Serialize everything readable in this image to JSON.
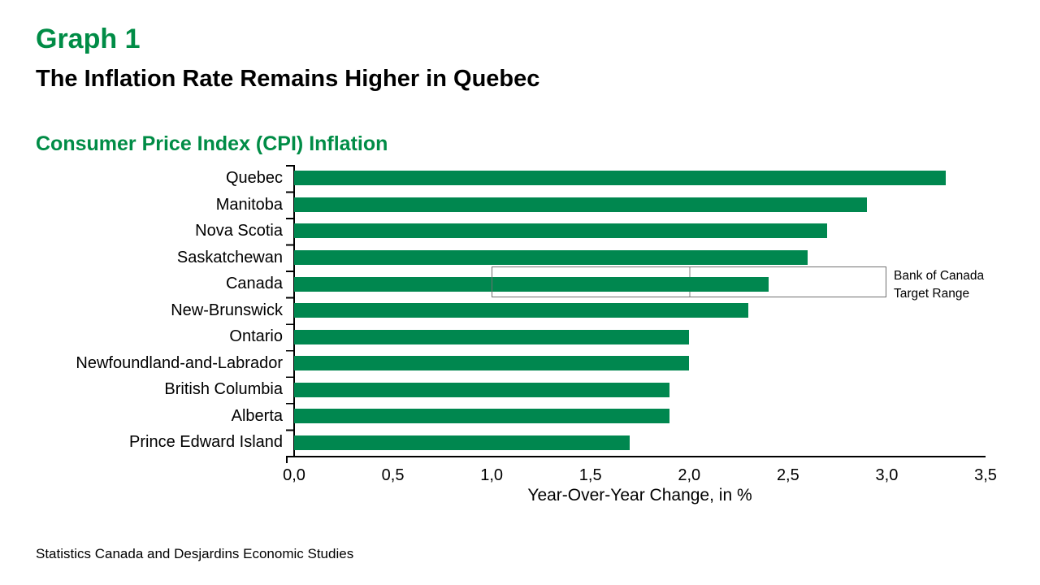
{
  "header": {
    "graph_label": "Graph 1",
    "title": "The Inflation Rate Remains Higher in Quebec",
    "subtitle": "Consumer Price Index (CPI) Inflation"
  },
  "chart_data": {
    "type": "bar",
    "orientation": "horizontal",
    "title": "Consumer Price Index (CPI) Inflation",
    "categories": [
      "Quebec",
      "Manitoba",
      "Nova Scotia",
      "Saskatchewan",
      "Canada",
      "New-Brunswick",
      "Ontario",
      "Newfoundland-and-Labrador",
      "British Columbia",
      "Alberta",
      "Prince Edward Island"
    ],
    "values": [
      3.3,
      2.9,
      2.7,
      2.6,
      2.4,
      2.3,
      2.0,
      2.0,
      1.9,
      1.9,
      1.7
    ],
    "xlabel": "Year-Over-Year Change, in %",
    "ylabel": "",
    "xlim": [
      0,
      3.5
    ],
    "x_ticks": [
      "0,0",
      "0,5",
      "1,0",
      "1,5",
      "2,0",
      "2,5",
      "3,0",
      "3,5"
    ],
    "x_tick_values": [
      0,
      0.5,
      1,
      1.5,
      2,
      2.5,
      3,
      3.5
    ],
    "grid": false,
    "annotation": {
      "label_line1": "Bank of Canada",
      "label_line2": "Target Range",
      "range": [
        1.0,
        3.0
      ],
      "midline": 2.0
    }
  },
  "footer": {
    "source": "Statistics Canada and Desjardins Economic Studies"
  },
  "colors": {
    "accent_green": "#008C46",
    "bar_green": "#00874F",
    "target_box_border": "#707070",
    "target_box_midline": "#BFBFBF",
    "axis": "#000000",
    "background": "#FFFFFF"
  }
}
